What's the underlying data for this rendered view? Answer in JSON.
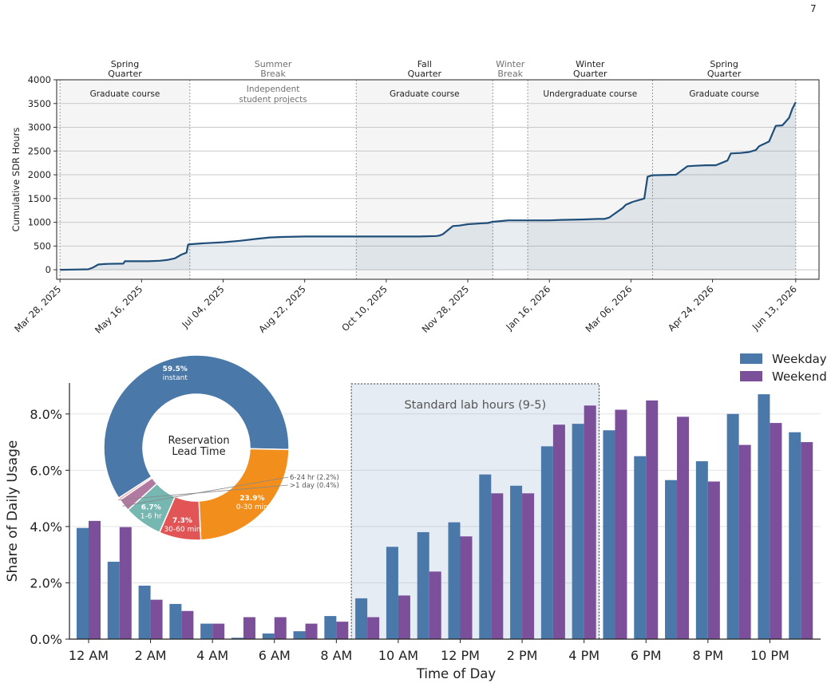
{
  "page": {
    "number": "7"
  },
  "chart_data": [
    {
      "type": "area",
      "ylabel": "Cumulative SDR Hours",
      "ylim": [
        -200,
        4000
      ],
      "yticks": [
        0,
        500,
        1000,
        1500,
        2000,
        2500,
        3000,
        3500,
        4000
      ],
      "xlim": [
        "2025-03-26",
        "2026-06-27"
      ],
      "xticks": [
        "Mar 28, 2025",
        "May 16, 2025",
        "Jul 04, 2025",
        "Aug 22, 2025",
        "Oct 10, 2025",
        "Nov 28, 2025",
        "Jan 16, 2026",
        "Mar 06, 2026",
        "Apr 24, 2026",
        "Jun 13, 2026"
      ],
      "xtick_dates": [
        "2025-03-28",
        "2025-05-16",
        "2025-07-04",
        "2025-08-22",
        "2025-10-10",
        "2025-11-28",
        "2026-01-16",
        "2026-03-06",
        "2026-04-24",
        "2026-06-13"
      ],
      "grid": "horizontal",
      "color": "#1f4e79",
      "periods": [
        {
          "header": [
            "Spring",
            "Quarter"
          ],
          "header_color": "#222222",
          "label": [
            "Graduate course"
          ],
          "label_color": "#222222",
          "start": "2025-03-28",
          "end": "2025-06-14",
          "shaded": true
        },
        {
          "header": [
            "Summer",
            "Break"
          ],
          "header_color": "#707070",
          "label": [
            "Independent",
            "student projects"
          ],
          "label_color": "#707070",
          "start": "2025-06-14",
          "end": "2025-09-22",
          "shaded": false
        },
        {
          "header": [
            "Fall",
            "Quarter"
          ],
          "header_color": "#222222",
          "label": [
            "Graduate course"
          ],
          "label_color": "#222222",
          "start": "2025-09-22",
          "end": "2025-12-13",
          "shaded": true
        },
        {
          "header": [
            "Winter",
            "Break"
          ],
          "header_color": "#707070",
          "label": [],
          "label_color": "#707070",
          "start": "2025-12-13",
          "end": "2026-01-03",
          "shaded": false
        },
        {
          "header": [
            "Winter",
            "Quarter"
          ],
          "header_color": "#222222",
          "label": [
            "Undergraduate course"
          ],
          "label_color": "#222222",
          "start": "2026-01-03",
          "end": "2026-03-19",
          "shaded": true
        },
        {
          "header": [
            "Spring",
            "Quarter"
          ],
          "header_color": "#222222",
          "label": [
            "Graduate course"
          ],
          "label_color": "#222222",
          "start": "2026-03-19",
          "end": "2026-06-13",
          "shaded": true
        }
      ],
      "series": [
        {
          "x": [
            "2025-03-28",
            "2025-04-06",
            "2025-04-14",
            "2025-04-17",
            "2025-04-20",
            "2025-04-23",
            "2025-04-26",
            "2025-05-05",
            "2025-05-06",
            "2025-05-20",
            "2025-05-27",
            "2025-06-01",
            "2025-06-05",
            "2025-06-09",
            "2025-06-12",
            "2025-06-13",
            "2025-06-15",
            "2025-06-23",
            "2025-07-04",
            "2025-07-14",
            "2025-07-24",
            "2025-08-01",
            "2025-08-08",
            "2025-08-22",
            "2025-09-22",
            "2025-10-10",
            "2025-10-30",
            "2025-11-09",
            "2025-11-11",
            "2025-11-13",
            "2025-11-19",
            "2025-11-23",
            "2025-11-28",
            "2025-12-07",
            "2025-12-10",
            "2025-12-13",
            "2025-12-22",
            "2026-01-16",
            "2026-01-23",
            "2026-02-06",
            "2026-02-14",
            "2026-02-18",
            "2026-02-21",
            "2026-02-23",
            "2026-03-01",
            "2026-03-03",
            "2026-03-05",
            "2026-03-07",
            "2026-03-14",
            "2026-03-16",
            "2026-03-18",
            "2026-03-19",
            "2026-04-02",
            "2026-04-09",
            "2026-04-14",
            "2026-04-20",
            "2026-04-26",
            "2026-05-03",
            "2026-05-05",
            "2026-05-11",
            "2026-05-16",
            "2026-05-20",
            "2026-05-22",
            "2026-05-28",
            "2026-06-01",
            "2026-06-05",
            "2026-06-09",
            "2026-06-11",
            "2026-06-13"
          ],
          "y": [
            0,
            5,
            10,
            50,
            110,
            120,
            125,
            130,
            180,
            180,
            190,
            210,
            240,
            320,
            360,
            530,
            540,
            560,
            580,
            610,
            650,
            680,
            690,
            700,
            700,
            700,
            700,
            710,
            720,
            750,
            920,
            930,
            960,
            980,
            985,
            1010,
            1040,
            1040,
            1050,
            1060,
            1070,
            1070,
            1100,
            1150,
            1300,
            1370,
            1400,
            1430,
            1500,
            1960,
            1980,
            1990,
            2000,
            2180,
            2190,
            2200,
            2200,
            2300,
            2450,
            2460,
            2480,
            2520,
            2600,
            2700,
            3030,
            3040,
            3200,
            3390,
            3530
          ]
        }
      ]
    },
    {
      "type": "bar",
      "xlabel": "Time of Day",
      "ylabel": "Share of Daily Usage",
      "ylim": [
        0,
        9.1
      ],
      "ytick_labels": [
        "0.0%",
        "2.0%",
        "4.0%",
        "6.0%",
        "8.0%"
      ],
      "ytick_values": [
        0,
        2,
        4,
        6,
        8
      ],
      "xtick_labels": [
        "12 AM",
        "2 AM",
        "4 AM",
        "6 AM",
        "8 AM",
        "10 AM",
        "12 PM",
        "2 PM",
        "4 PM",
        "6 PM",
        "8 PM",
        "10 PM"
      ],
      "categories": [
        0,
        1,
        2,
        3,
        4,
        5,
        6,
        7,
        8,
        9,
        10,
        11,
        12,
        13,
        14,
        15,
        16,
        17,
        18,
        19,
        20,
        21,
        22,
        23
      ],
      "grid": "horizontal",
      "legend_position": "top-right",
      "series": [
        {
          "name": "Weekday",
          "color": "#4a78a8",
          "values": [
            3.95,
            2.75,
            1.9,
            1.25,
            0.55,
            0.05,
            0.2,
            0.28,
            0.82,
            1.45,
            3.28,
            3.8,
            4.15,
            5.85,
            5.45,
            6.85,
            7.65,
            7.42,
            6.5,
            5.65,
            6.32,
            8.0,
            8.7,
            7.35
          ]
        },
        {
          "name": "Weekend",
          "color": "#7b4f9a",
          "values": [
            4.2,
            3.98,
            1.4,
            1.0,
            0.55,
            0.78,
            0.78,
            0.55,
            0.62,
            0.78,
            1.55,
            2.4,
            3.65,
            5.18,
            5.18,
            7.62,
            8.3,
            8.15,
            8.48,
            7.9,
            5.6,
            6.9,
            7.68,
            7.0
          ]
        }
      ],
      "annotation": {
        "label": "Standard lab hours (9-5)",
        "start_hour": 9,
        "end_hour": 17
      },
      "inset": {
        "type": "pie",
        "center_label": [
          "Reservation",
          "Lead Time"
        ],
        "slices": [
          {
            "pct": "59.5%",
            "value": 59.5,
            "sublabel": "instant",
            "color": "#4a78a8",
            "label_mode": "inside"
          },
          {
            "pct": "23.9%",
            "value": 23.9,
            "sublabel": "0-30 min",
            "color": "#f28e1c",
            "label_mode": "inside"
          },
          {
            "pct": "7.3%",
            "value": 7.3,
            "sublabel": "30-60 min",
            "color": "#e15557",
            "label_mode": "inside"
          },
          {
            "pct": "6.7%",
            "value": 6.7,
            "sublabel": "1-6 hr",
            "color": "#76b7b2",
            "label_mode": "inside"
          },
          {
            "pct": "",
            "value": 2.2,
            "sublabel": "6-24 hr (2.2%)",
            "color": "#b07aa1",
            "label_mode": "outside"
          },
          {
            "pct": "",
            "value": 0.4,
            "sublabel": ">1 day (0.4%)",
            "color": "#ff9da7",
            "label_mode": "outside"
          }
        ]
      }
    }
  ]
}
